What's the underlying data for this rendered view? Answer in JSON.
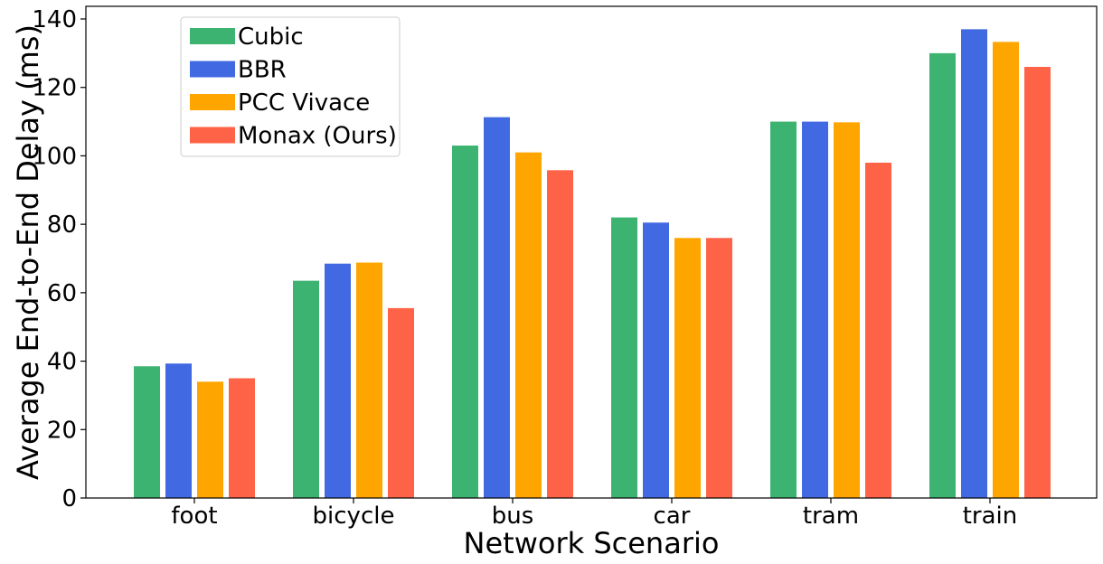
{
  "chart_data": {
    "type": "bar",
    "title": "",
    "xlabel": "Network Scenario",
    "ylabel": "Average End-to-End Delay (ms)",
    "ylim": [
      0,
      140
    ],
    "yticks": [
      0,
      20,
      40,
      60,
      80,
      100,
      120,
      140
    ],
    "categories": [
      "foot",
      "bicycle",
      "bus",
      "car",
      "tram",
      "train"
    ],
    "series": [
      {
        "name": "Cubic",
        "color": "#3cb371",
        "values": [
          38.5,
          63.5,
          103,
          82,
          110,
          130
        ]
      },
      {
        "name": "BBR",
        "color": "#4169e1",
        "values": [
          39.3,
          68.5,
          111.3,
          80.5,
          110,
          137
        ]
      },
      {
        "name": "PCC Vivace",
        "color": "#ffa500",
        "values": [
          34,
          68.8,
          101,
          76,
          109.8,
          133.3
        ]
      },
      {
        "name": "Monax (Ours)",
        "color": "#ff6347",
        "values": [
          35,
          55.5,
          95.8,
          76,
          98,
          126
        ]
      }
    ],
    "legend_position": "top-left",
    "grid": false
  }
}
